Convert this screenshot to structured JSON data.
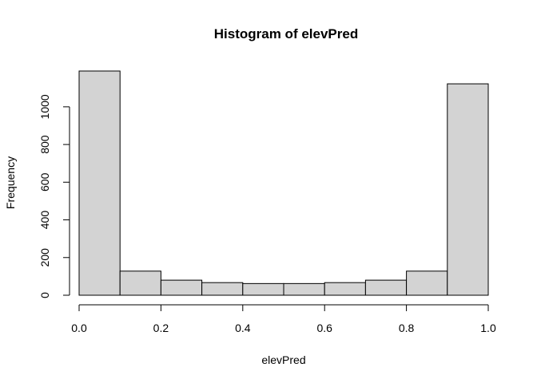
{
  "chart_data": {
    "type": "bar",
    "title": "Histogram of elevPred",
    "xlabel": "elevPred",
    "ylabel": "Frequency",
    "bins": [
      {
        "start": 0.0,
        "end": 0.1,
        "count": 1190
      },
      {
        "start": 0.1,
        "end": 0.2,
        "count": 128
      },
      {
        "start": 0.2,
        "end": 0.3,
        "count": 80
      },
      {
        "start": 0.3,
        "end": 0.4,
        "count": 67
      },
      {
        "start": 0.4,
        "end": 0.5,
        "count": 62
      },
      {
        "start": 0.5,
        "end": 0.6,
        "count": 62
      },
      {
        "start": 0.6,
        "end": 0.7,
        "count": 67
      },
      {
        "start": 0.7,
        "end": 0.8,
        "count": 80
      },
      {
        "start": 0.8,
        "end": 0.9,
        "count": 128
      },
      {
        "start": 0.9,
        "end": 1.0,
        "count": 1122
      }
    ],
    "xlim": [
      0,
      1
    ],
    "ylim": [
      0,
      1190
    ],
    "x_ticks": [
      "0.0",
      "0.2",
      "0.4",
      "0.6",
      "0.8",
      "1.0"
    ],
    "y_ticks": [
      "0",
      "200",
      "400",
      "600",
      "800",
      "1000"
    ],
    "grid": false,
    "colors": {
      "bar_fill": "#d3d3d3",
      "bar_stroke": "#000000"
    }
  }
}
